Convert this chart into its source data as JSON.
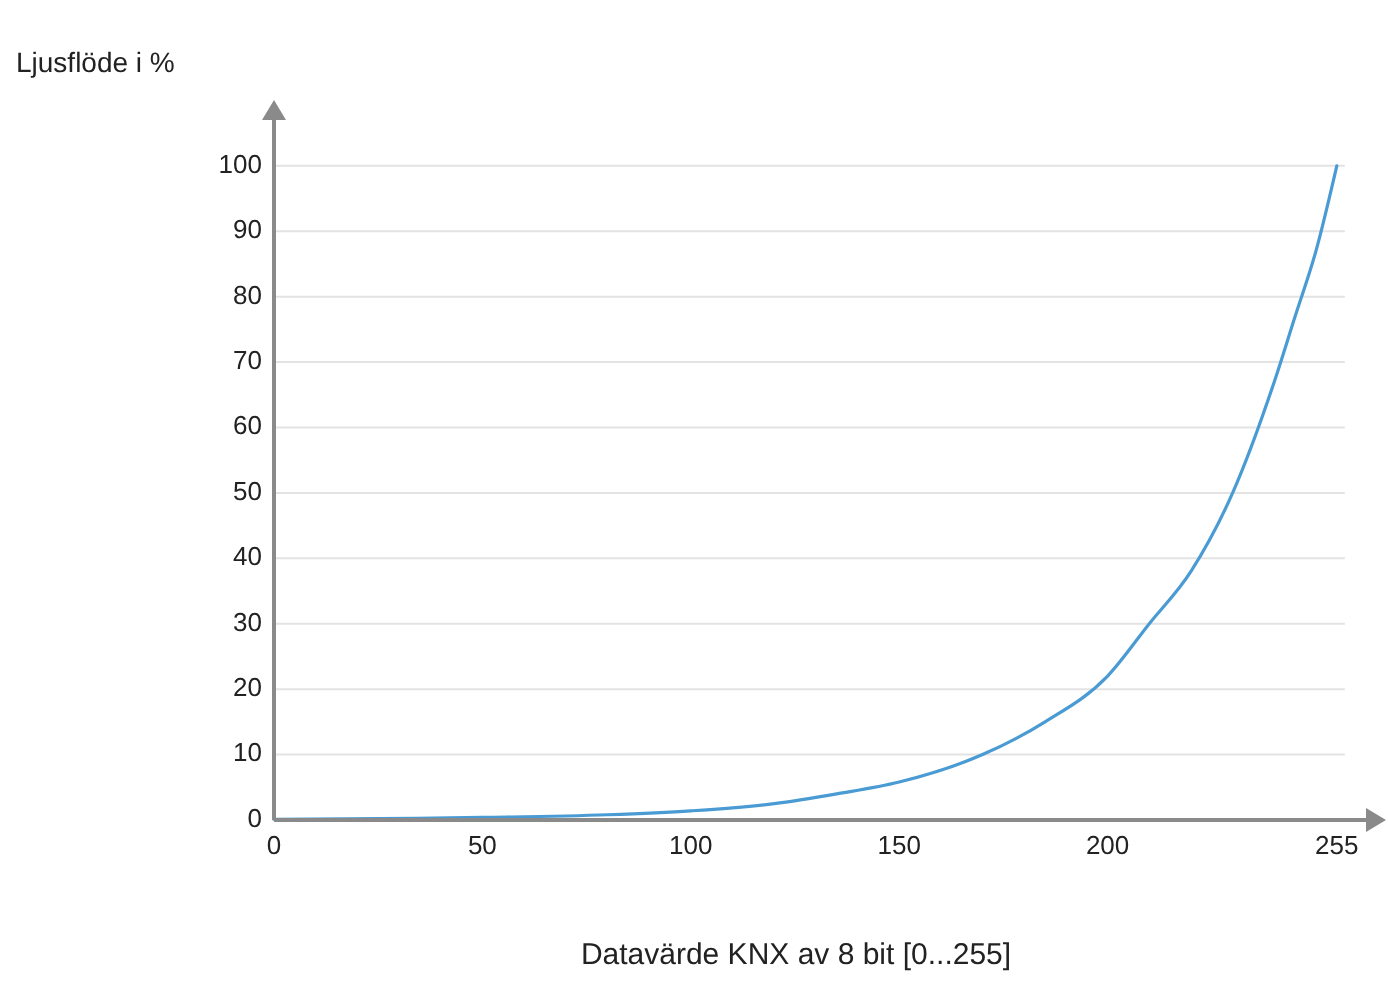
{
  "chart_data": {
    "type": "line",
    "ylabel": "Ljusflöde i %",
    "xlabel": "Datavärde KNX av 8 bit [0...255]",
    "xlim": [
      0,
      262
    ],
    "ylim": [
      0,
      107
    ],
    "xticks": [
      0,
      50,
      100,
      150,
      200,
      255
    ],
    "yticks": [
      0,
      10,
      20,
      30,
      40,
      50,
      60,
      70,
      80,
      90,
      100
    ],
    "grid": "y",
    "series": [
      {
        "color": "#4a9bd4",
        "x": [
          0,
          25,
          50,
          80,
          100,
          120,
          135,
          150,
          170,
          185,
          200,
          210,
          220,
          230,
          240,
          245,
          250,
          255
        ],
        "values": [
          0.1,
          0.2,
          0.4,
          0.8,
          1.4,
          2.5,
          4,
          5.8,
          10,
          15,
          22,
          30,
          38,
          50,
          67,
          77,
          87,
          100
        ]
      }
    ]
  }
}
